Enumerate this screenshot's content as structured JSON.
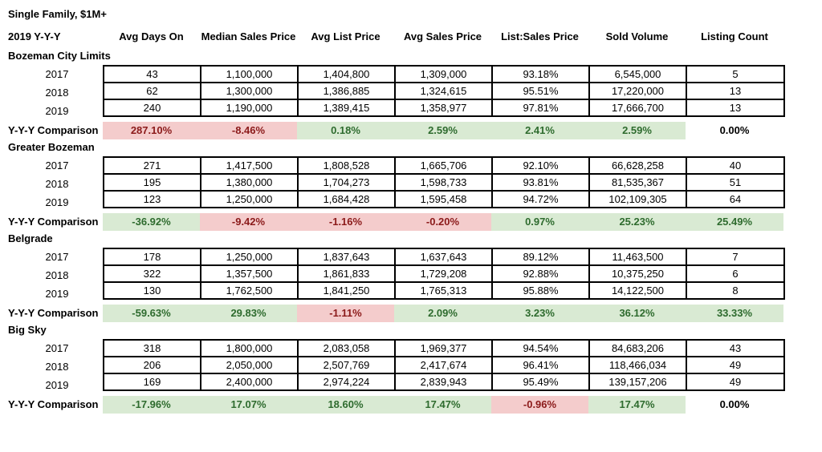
{
  "title": "Single Family, $1M+",
  "header": {
    "first": "2019 Y-Y-Y",
    "columns": [
      "Avg Days On",
      "Median Sales Price",
      "Avg List Price",
      "Avg Sales Price",
      "List:Sales Price",
      "Sold Volume",
      "Listing Count"
    ]
  },
  "comparison_label": "Y-Y-Y Comparison",
  "colors": {
    "negative_bg": "#f4cccc",
    "negative_text": "#8b1a1a",
    "positive_bg": "#d9ead3",
    "positive_text": "#2e6b2e"
  },
  "sections": [
    {
      "name": "Bozeman City Limits",
      "rows": [
        {
          "year": "2017",
          "cells": [
            "43",
            "1,100,000",
            "1,404,800",
            "1,309,000",
            "93.18%",
            "6,545,000",
            "5"
          ]
        },
        {
          "year": "2018",
          "cells": [
            "62",
            "1,300,000",
            "1,386,885",
            "1,324,615",
            "95.51%",
            "17,220,000",
            "13"
          ]
        },
        {
          "year": "2019",
          "cells": [
            "240",
            "1,190,000",
            "1,389,415",
            "1,358,977",
            "97.81%",
            "17,666,700",
            "13"
          ]
        }
      ],
      "comparison": [
        {
          "value": "287.10%",
          "tone": "neg"
        },
        {
          "value": "-8.46%",
          "tone": "neg"
        },
        {
          "value": "0.18%",
          "tone": "pos"
        },
        {
          "value": "2.59%",
          "tone": "pos"
        },
        {
          "value": "2.41%",
          "tone": "pos"
        },
        {
          "value": "2.59%",
          "tone": "pos"
        },
        {
          "value": "0.00%",
          "tone": "neu"
        }
      ]
    },
    {
      "name": "Greater Bozeman",
      "rows": [
        {
          "year": "2017",
          "cells": [
            "271",
            "1,417,500",
            "1,808,528",
            "1,665,706",
            "92.10%",
            "66,628,258",
            "40"
          ]
        },
        {
          "year": "2018",
          "cells": [
            "195",
            "1,380,000",
            "1,704,273",
            "1,598,733",
            "93.81%",
            "81,535,367",
            "51"
          ]
        },
        {
          "year": "2019",
          "cells": [
            "123",
            "1,250,000",
            "1,684,428",
            "1,595,458",
            "94.72%",
            "102,109,305",
            "64"
          ]
        }
      ],
      "comparison": [
        {
          "value": "-36.92%",
          "tone": "pos"
        },
        {
          "value": "-9.42%",
          "tone": "neg"
        },
        {
          "value": "-1.16%",
          "tone": "neg"
        },
        {
          "value": "-0.20%",
          "tone": "neg"
        },
        {
          "value": "0.97%",
          "tone": "pos"
        },
        {
          "value": "25.23%",
          "tone": "pos"
        },
        {
          "value": "25.49%",
          "tone": "pos"
        }
      ]
    },
    {
      "name": "Belgrade",
      "rows": [
        {
          "year": "2017",
          "cells": [
            "178",
            "1,250,000",
            "1,837,643",
            "1,637,643",
            "89.12%",
            "11,463,500",
            "7"
          ]
        },
        {
          "year": "2018",
          "cells": [
            "322",
            "1,357,500",
            "1,861,833",
            "1,729,208",
            "92.88%",
            "10,375,250",
            "6"
          ]
        },
        {
          "year": "2019",
          "cells": [
            "130",
            "1,762,500",
            "1,841,250",
            "1,765,313",
            "95.88%",
            "14,122,500",
            "8"
          ]
        }
      ],
      "comparison": [
        {
          "value": "-59.63%",
          "tone": "pos"
        },
        {
          "value": "29.83%",
          "tone": "pos"
        },
        {
          "value": "-1.11%",
          "tone": "neg"
        },
        {
          "value": "2.09%",
          "tone": "pos"
        },
        {
          "value": "3.23%",
          "tone": "pos"
        },
        {
          "value": "36.12%",
          "tone": "pos"
        },
        {
          "value": "33.33%",
          "tone": "pos"
        }
      ]
    },
    {
      "name": "Big Sky",
      "rows": [
        {
          "year": "2017",
          "cells": [
            "318",
            "1,800,000",
            "2,083,058",
            "1,969,377",
            "94.54%",
            "84,683,206",
            "43"
          ]
        },
        {
          "year": "2018",
          "cells": [
            "206",
            "2,050,000",
            "2,507,769",
            "2,417,674",
            "96.41%",
            "118,466,034",
            "49"
          ]
        },
        {
          "year": "2019",
          "cells": [
            "169",
            "2,400,000",
            "2,974,224",
            "2,839,943",
            "95.49%",
            "139,157,206",
            "49"
          ]
        }
      ],
      "comparison": [
        {
          "value": "-17.96%",
          "tone": "pos"
        },
        {
          "value": "17.07%",
          "tone": "pos"
        },
        {
          "value": "18.60%",
          "tone": "pos"
        },
        {
          "value": "17.47%",
          "tone": "pos"
        },
        {
          "value": "-0.96%",
          "tone": "neg"
        },
        {
          "value": "17.47%",
          "tone": "pos"
        },
        {
          "value": "0.00%",
          "tone": "neu"
        }
      ]
    }
  ]
}
